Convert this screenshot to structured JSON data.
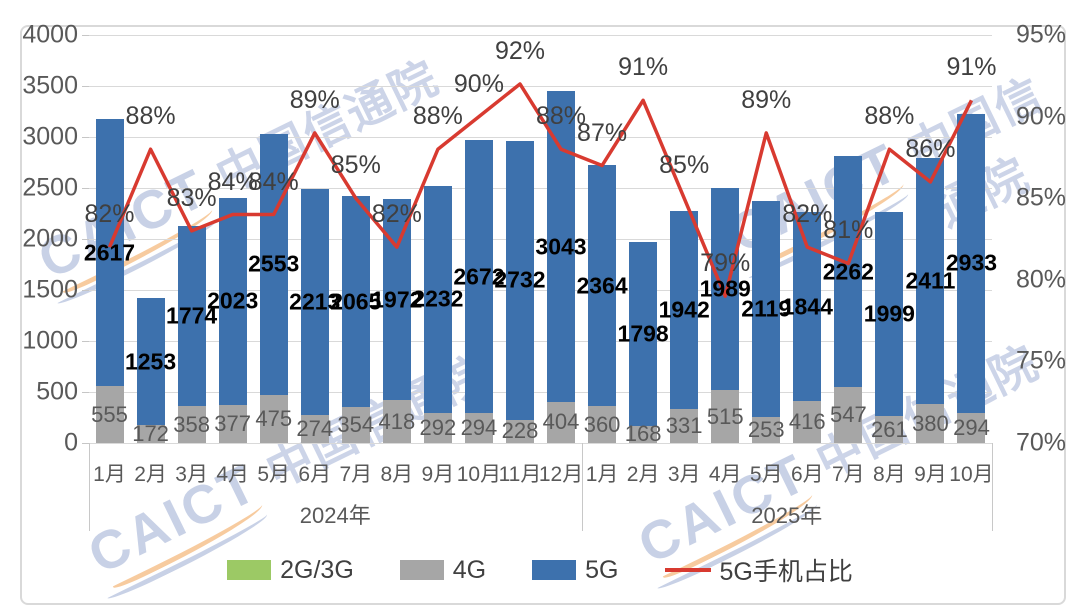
{
  "watermark": {
    "latin": "CAICT",
    "cjk": "中国信通院"
  },
  "chart_data": {
    "type": "bar",
    "subtype": "stacked-bar-with-line",
    "title": "",
    "xlabel": "",
    "ylabel": "",
    "grid": true,
    "legend_position": "bottom",
    "categories": [
      "1月",
      "2月",
      "3月",
      "4月",
      "5月",
      "6月",
      "7月",
      "8月",
      "9月",
      "10月",
      "11月",
      "12月",
      "1月",
      "2月",
      "3月",
      "4月",
      "5月",
      "6月",
      "7月",
      "8月",
      "9月",
      "10月"
    ],
    "year_groups": [
      {
        "label": "2024年",
        "span": 12
      },
      {
        "label": "2025年",
        "span": 10
      }
    ],
    "series": [
      {
        "name": "2G/3G",
        "type": "bar",
        "color": "#9cc965",
        "values": [],
        "visible_segments": false
      },
      {
        "name": "4G",
        "type": "bar",
        "color": "#a6a6a6",
        "values": [
          555,
          172,
          358,
          377,
          475,
          274,
          354,
          418,
          292,
          294,
          228,
          404,
          360,
          168,
          331,
          515,
          253,
          416,
          547,
          261,
          380,
          294
        ]
      },
      {
        "name": "5G",
        "type": "bar",
        "color": "#3d71ad",
        "values": [
          2617,
          1253,
          1774,
          2023,
          2553,
          2213,
          2065,
          1972,
          2232,
          2672,
          2732,
          3043,
          2364,
          1798,
          1942,
          1989,
          2119,
          1844,
          2262,
          1999,
          2411,
          2933
        ]
      },
      {
        "name": "5G手机占比",
        "type": "line",
        "color": "#d83a30",
        "axis": "right",
        "values_pct": [
          82,
          88,
          83,
          84,
          84,
          89,
          85,
          82,
          88,
          90,
          92,
          88,
          87,
          91,
          85,
          79,
          89,
          82,
          81,
          88,
          86,
          91
        ]
      }
    ],
    "left_axis": {
      "min": 0,
      "max": 4000,
      "step": 500,
      "ticks": [
        "0",
        "500",
        "1000",
        "1500",
        "2000",
        "2500",
        "3000",
        "3500",
        "4000"
      ]
    },
    "right_axis": {
      "min": 70,
      "max": 95,
      "step": 5,
      "ticks": [
        "70%",
        "75%",
        "80%",
        "85%",
        "90%",
        "95%"
      ]
    }
  }
}
